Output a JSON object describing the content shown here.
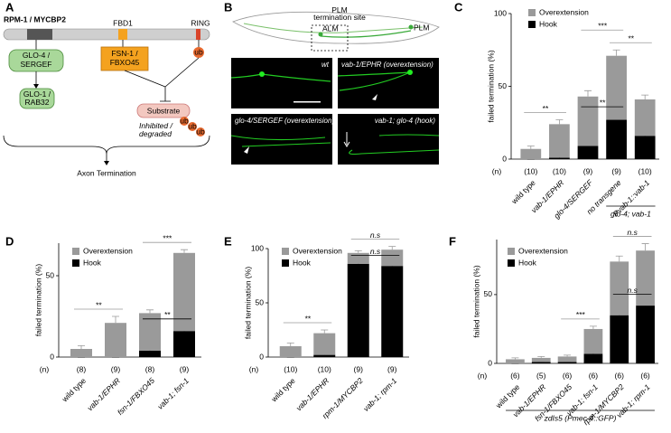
{
  "panel_labels": [
    "A",
    "B",
    "C",
    "D",
    "E",
    "F"
  ],
  "diagram": {
    "protein": "RPM-1 / MYCBP2",
    "domains": [
      "FBD1",
      "RING"
    ],
    "glo4": [
      "GLO-4 /",
      "SERGEF"
    ],
    "fsn1": [
      "FSN-1 /",
      "FBXO45"
    ],
    "glo1": [
      "GLO-1 /",
      "RAB32"
    ],
    "ubiquitin": "ub",
    "substrate": "Substrate",
    "substrate_note": [
      "Inhibited /",
      "degraded"
    ],
    "outcome": "Axon Termination"
  },
  "images": {
    "schematic": {
      "title": [
        "PLM",
        "termination site"
      ],
      "labels": [
        "ALM",
        "PLM"
      ]
    },
    "panels": [
      "wt",
      "vab-1/EPHR (overextension)",
      "glo-4/SERGEF (overextension)",
      "vab-1; glo-4 (hook)"
    ]
  },
  "chart_data": [
    {
      "type": "bar",
      "stacked": true,
      "ylabel": "failed termination (%)",
      "ylim": [
        0,
        100
      ],
      "yticks": [
        0,
        50,
        100
      ],
      "categories": [
        "wild type",
        "vab-1/EPHR",
        "glo-4/SERGEF",
        "no transgene",
        "Pvab-1::vab-1"
      ],
      "n_label": "(n)",
      "n": [
        "(10)",
        "(10)",
        "(9)",
        "(9)",
        "(10)"
      ],
      "group": {
        "label": "glo-4; vab-1",
        "span": [
          3,
          4
        ]
      },
      "series": [
        {
          "name": "Overextension",
          "color": "#9a9a9a",
          "values": [
            7,
            23,
            34,
            44,
            25
          ],
          "errors": [
            2,
            3,
            4,
            4,
            3
          ]
        },
        {
          "name": "Hook",
          "color": "#000000",
          "values": [
            0,
            1,
            9,
            27,
            16
          ],
          "errors": [
            0,
            1,
            2,
            4,
            2
          ]
        }
      ],
      "annotations": [
        {
          "label": "**",
          "between": [
            0,
            1
          ],
          "color": "#9a9a9a"
        },
        {
          "label": "**",
          "between": [
            3,
            4
          ],
          "color": "#9a9a9a"
        },
        {
          "label": "***",
          "between": [
            2,
            3
          ],
          "color": "#9a9a9a"
        },
        {
          "label": "**",
          "between": [
            2,
            3
          ],
          "color": "#000000"
        }
      ]
    },
    {
      "type": "bar",
      "stacked": true,
      "ylabel": "failed termination (%)",
      "ylim": [
        0,
        70
      ],
      "yticks": [
        0,
        50
      ],
      "categories": [
        "wild type",
        "vab-1/EPHR",
        "fsn-1/FBXO45",
        "vab-1; fsn-1"
      ],
      "n_label": "(n)",
      "n": [
        "(8)",
        "(9)",
        "(8)",
        "(9)"
      ],
      "series": [
        {
          "name": "Overextension",
          "color": "#9a9a9a",
          "values": [
            5,
            21,
            23,
            48
          ],
          "errors": [
            2,
            4,
            2,
            2
          ]
        },
        {
          "name": "Hook",
          "color": "#000000",
          "values": [
            0,
            0,
            4,
            16
          ],
          "errors": [
            0,
            0,
            2,
            3
          ]
        }
      ],
      "annotations": [
        {
          "label": "**",
          "between": [
            0,
            1
          ],
          "color": "#9a9a9a"
        },
        {
          "label": "***",
          "between": [
            2,
            3
          ],
          "color": "#9a9a9a"
        },
        {
          "label": "**",
          "between": [
            2,
            3
          ],
          "color": "#000000"
        }
      ]
    },
    {
      "type": "bar",
      "stacked": true,
      "ylabel": "failed termination (%)",
      "ylim": [
        0,
        100
      ],
      "yticks": [
        0,
        50,
        100
      ],
      "categories": [
        "wild type",
        "vab-1/EPHR",
        "rpm-1/MYCBP2",
        "vab-1; rpm-1"
      ],
      "n_label": "(n)",
      "n": [
        "(10)",
        "(10)",
        "(9)",
        "(9)"
      ],
      "series": [
        {
          "name": "Overextension",
          "color": "#9a9a9a",
          "values": [
            10,
            20,
            10,
            15
          ],
          "errors": [
            3,
            3,
            2,
            3
          ]
        },
        {
          "name": "Hook",
          "color": "#000000",
          "values": [
            0,
            2,
            86,
            84
          ],
          "errors": [
            0,
            1,
            1,
            2
          ]
        }
      ],
      "annotations": [
        {
          "label": "**",
          "between": [
            0,
            1
          ],
          "color": "#9a9a9a"
        },
        {
          "label": "n.s",
          "between": [
            2,
            3
          ],
          "color": "#9a9a9a"
        },
        {
          "label": "n.s",
          "between": [
            2,
            3
          ],
          "color": "#000000"
        }
      ]
    },
    {
      "type": "bar",
      "stacked": true,
      "ylabel": "failed termination (%)",
      "ylim": [
        0,
        90
      ],
      "yticks": [
        0,
        50
      ],
      "categories": [
        "wild type",
        "vab-1/EPHR",
        "fsn-1/FBXO45",
        "vab-1; fsn-1",
        "rpm-1/MYCBP2",
        "vab-1; rpm-1"
      ],
      "n_label": "(n)",
      "n": [
        "(6)",
        "(5)",
        "(6)",
        "(6)",
        "(6)",
        "(6)"
      ],
      "group": {
        "label": "zdIs5 (Pmec-4::GFP)",
        "span": [
          0,
          5
        ]
      },
      "series": [
        {
          "name": "Overextension",
          "color": "#9a9a9a",
          "values": [
            3,
            3,
            4,
            18,
            39,
            40
          ],
          "errors": [
            1,
            1,
            1,
            2,
            4,
            5
          ]
        },
        {
          "name": "Hook",
          "color": "#000000",
          "values": [
            0,
            1,
            1,
            7,
            35,
            42
          ],
          "errors": [
            0,
            0,
            0,
            1,
            3,
            3
          ]
        }
      ],
      "annotations": [
        {
          "label": "***",
          "between": [
            2,
            3
          ],
          "color": "#9a9a9a"
        },
        {
          "label": "n.s",
          "between": [
            4,
            5
          ],
          "color": "#9a9a9a"
        },
        {
          "label": "n.s",
          "between": [
            4,
            5
          ],
          "color": "#000000"
        }
      ]
    }
  ]
}
